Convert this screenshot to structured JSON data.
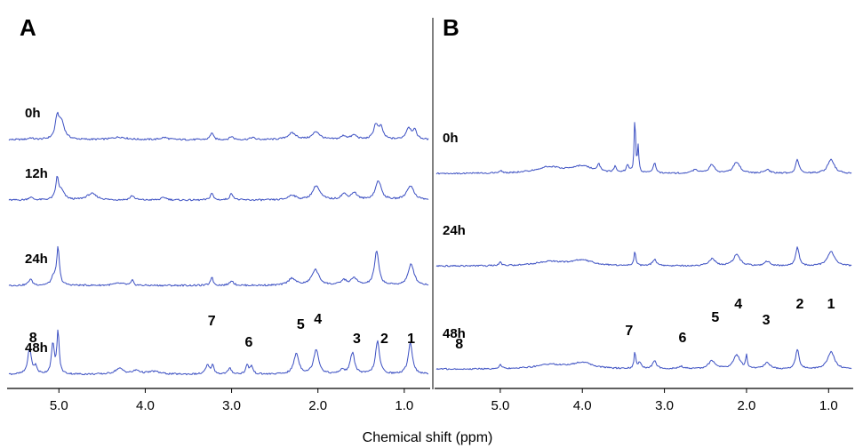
{
  "figure": {
    "xlabel": "Chemical shift (ppm)",
    "line_color": "#3b4fc2"
  },
  "chart_data": [
    {
      "panel": "A",
      "type": "line",
      "xlabel": "Chemical shift (ppm)",
      "xlim": [
        5.6,
        0.7
      ],
      "x_reversed": true,
      "xticks": [
        {
          "value": 5.0,
          "label": "5.0"
        },
        {
          "value": 4.0,
          "label": "4.0"
        },
        {
          "value": 3.0,
          "label": "3.0"
        },
        {
          "value": 2.0,
          "label": "2.0"
        },
        {
          "value": 1.0,
          "label": "1.0"
        }
      ],
      "series": [
        {
          "name": "0h",
          "baseline": 0.05,
          "peaks": [
            {
              "x": 5.33,
              "h": 0.12,
              "w": 0.03
            },
            {
              "x": 5.02,
              "h": 1.45,
              "w": 0.025
            },
            {
              "x": 4.97,
              "h": 1.2,
              "w": 0.04
            },
            {
              "x": 4.3,
              "h": 0.18,
              "w": 0.1
            },
            {
              "x": 3.78,
              "h": 0.15,
              "w": 0.05
            },
            {
              "x": 3.23,
              "h": 0.5,
              "w": 0.02
            },
            {
              "x": 3.0,
              "h": 0.22,
              "w": 0.025
            },
            {
              "x": 2.76,
              "h": 0.15,
              "w": 0.03
            },
            {
              "x": 2.3,
              "h": 0.45,
              "w": 0.06
            },
            {
              "x": 2.02,
              "h": 0.55,
              "w": 0.05
            },
            {
              "x": 1.7,
              "h": 0.25,
              "w": 0.04
            },
            {
              "x": 1.58,
              "h": 0.3,
              "w": 0.04
            },
            {
              "x": 1.33,
              "h": 1.0,
              "w": 0.03
            },
            {
              "x": 1.27,
              "h": 0.8,
              "w": 0.03
            },
            {
              "x": 0.95,
              "h": 0.8,
              "w": 0.035
            },
            {
              "x": 0.88,
              "h": 0.6,
              "w": 0.03
            }
          ]
        },
        {
          "name": "12h",
          "baseline": 0.05,
          "peaks": [
            {
              "x": 5.33,
              "h": 0.2,
              "w": 0.03
            },
            {
              "x": 5.02,
              "h": 1.45,
              "w": 0.02
            },
            {
              "x": 4.97,
              "h": 0.6,
              "w": 0.04
            },
            {
              "x": 4.62,
              "h": 0.45,
              "w": 0.07
            },
            {
              "x": 4.15,
              "h": 0.3,
              "w": 0.03
            },
            {
              "x": 3.78,
              "h": 0.18,
              "w": 0.04
            },
            {
              "x": 3.23,
              "h": 0.5,
              "w": 0.02
            },
            {
              "x": 3.0,
              "h": 0.45,
              "w": 0.025
            },
            {
              "x": 2.3,
              "h": 0.35,
              "w": 0.05
            },
            {
              "x": 2.02,
              "h": 1.0,
              "w": 0.05
            },
            {
              "x": 1.7,
              "h": 0.4,
              "w": 0.04
            },
            {
              "x": 1.58,
              "h": 0.5,
              "w": 0.04
            },
            {
              "x": 1.3,
              "h": 1.35,
              "w": 0.04
            },
            {
              "x": 0.93,
              "h": 1.0,
              "w": 0.05
            }
          ]
        },
        {
          "name": "24h",
          "baseline": 0.05,
          "peaks": [
            {
              "x": 5.33,
              "h": 0.45,
              "w": 0.025
            },
            {
              "x": 5.06,
              "h": 0.6,
              "w": 0.03
            },
            {
              "x": 5.01,
              "h": 2.6,
              "w": 0.018
            },
            {
              "x": 4.3,
              "h": 0.15,
              "w": 0.08
            },
            {
              "x": 4.15,
              "h": 0.35,
              "w": 0.015
            },
            {
              "x": 3.23,
              "h": 0.6,
              "w": 0.018
            },
            {
              "x": 3.0,
              "h": 0.35,
              "w": 0.025
            },
            {
              "x": 2.3,
              "h": 0.5,
              "w": 0.05
            },
            {
              "x": 2.03,
              "h": 1.1,
              "w": 0.05
            },
            {
              "x": 1.7,
              "h": 0.35,
              "w": 0.04
            },
            {
              "x": 1.58,
              "h": 0.5,
              "w": 0.04
            },
            {
              "x": 1.32,
              "h": 2.4,
              "w": 0.03
            },
            {
              "x": 0.92,
              "h": 1.5,
              "w": 0.04
            }
          ]
        },
        {
          "name": "48h",
          "baseline": 0.05,
          "peaks": [
            {
              "x": 5.34,
              "h": 1.8,
              "w": 0.025
            },
            {
              "x": 5.27,
              "h": 0.5,
              "w": 0.02
            },
            {
              "x": 5.07,
              "h": 2.1,
              "w": 0.02
            },
            {
              "x": 5.01,
              "h": 3.0,
              "w": 0.015
            },
            {
              "x": 4.3,
              "h": 0.4,
              "w": 0.06
            },
            {
              "x": 4.1,
              "h": 0.25,
              "w": 0.05
            },
            {
              "x": 3.9,
              "h": 0.2,
              "w": 0.08
            },
            {
              "x": 3.28,
              "h": 0.6,
              "w": 0.025
            },
            {
              "x": 3.22,
              "h": 0.6,
              "w": 0.02
            },
            {
              "x": 3.02,
              "h": 0.4,
              "w": 0.025
            },
            {
              "x": 2.82,
              "h": 0.6,
              "w": 0.02
            },
            {
              "x": 2.77,
              "h": 0.55,
              "w": 0.02
            },
            {
              "x": 2.25,
              "h": 1.45,
              "w": 0.035
            },
            {
              "x": 2.02,
              "h": 1.75,
              "w": 0.035
            },
            {
              "x": 1.72,
              "h": 0.3,
              "w": 0.03
            },
            {
              "x": 1.6,
              "h": 1.5,
              "w": 0.03
            },
            {
              "x": 1.31,
              "h": 2.3,
              "w": 0.028
            },
            {
              "x": 0.93,
              "h": 2.2,
              "w": 0.03
            }
          ]
        }
      ],
      "annotations": [
        {
          "text": "8",
          "x": 5.3
        },
        {
          "text": "7",
          "x": 3.23
        },
        {
          "text": "6",
          "x": 2.8
        },
        {
          "text": "5",
          "x": 2.2
        },
        {
          "text": "4",
          "x": 2.0
        },
        {
          "text": "3",
          "x": 1.55
        },
        {
          "text": "2",
          "x": 1.23
        },
        {
          "text": "1",
          "x": 0.92
        }
      ]
    },
    {
      "panel": "B",
      "type": "line",
      "xlabel": "Chemical shift (ppm)",
      "xlim": [
        5.8,
        0.7
      ],
      "x_reversed": true,
      "xticks": [
        {
          "value": 5.0,
          "label": "5.0"
        },
        {
          "value": 4.0,
          "label": "4.0"
        },
        {
          "value": 3.0,
          "label": "3.0"
        },
        {
          "value": 2.0,
          "label": "2.0"
        },
        {
          "value": 1.0,
          "label": "1.0"
        }
      ],
      "series": [
        {
          "name": "0h",
          "baseline": 0.05,
          "peaks": [
            {
              "x": 5.0,
              "h": 0.2,
              "w": 0.02
            },
            {
              "x": 4.4,
              "h": 0.5,
              "w": 0.2
            },
            {
              "x": 4.0,
              "h": 0.55,
              "w": 0.15
            },
            {
              "x": 3.8,
              "h": 0.6,
              "w": 0.02
            },
            {
              "x": 3.6,
              "h": 0.5,
              "w": 0.02
            },
            {
              "x": 3.45,
              "h": 0.6,
              "w": 0.02
            },
            {
              "x": 3.36,
              "h": 4.5,
              "w": 0.01
            },
            {
              "x": 3.32,
              "h": 2.0,
              "w": 0.01
            },
            {
              "x": 3.12,
              "h": 0.8,
              "w": 0.02
            },
            {
              "x": 2.62,
              "h": 0.3,
              "w": 0.04
            },
            {
              "x": 2.42,
              "h": 0.7,
              "w": 0.04
            },
            {
              "x": 2.12,
              "h": 0.9,
              "w": 0.05
            },
            {
              "x": 1.75,
              "h": 0.3,
              "w": 0.04
            },
            {
              "x": 1.38,
              "h": 1.1,
              "w": 0.025
            },
            {
              "x": 0.97,
              "h": 1.1,
              "w": 0.05
            }
          ]
        },
        {
          "name": "24h",
          "baseline": 0.05,
          "peaks": [
            {
              "x": 5.0,
              "h": 0.25,
              "w": 0.02
            },
            {
              "x": 4.4,
              "h": 0.35,
              "w": 0.2
            },
            {
              "x": 4.0,
              "h": 0.45,
              "w": 0.15
            },
            {
              "x": 3.36,
              "h": 1.2,
              "w": 0.012
            },
            {
              "x": 3.12,
              "h": 0.5,
              "w": 0.03
            },
            {
              "x": 2.42,
              "h": 0.55,
              "w": 0.05
            },
            {
              "x": 2.12,
              "h": 0.9,
              "w": 0.05
            },
            {
              "x": 1.75,
              "h": 0.35,
              "w": 0.04
            },
            {
              "x": 1.38,
              "h": 1.5,
              "w": 0.025
            },
            {
              "x": 0.97,
              "h": 1.2,
              "w": 0.05
            }
          ]
        },
        {
          "name": "48h",
          "baseline": 0.05,
          "peaks": [
            {
              "x": 5.0,
              "h": 0.3,
              "w": 0.02
            },
            {
              "x": 4.4,
              "h": 0.35,
              "w": 0.2
            },
            {
              "x": 4.0,
              "h": 0.5,
              "w": 0.15
            },
            {
              "x": 3.36,
              "h": 1.4,
              "w": 0.012
            },
            {
              "x": 3.3,
              "h": 0.5,
              "w": 0.02
            },
            {
              "x": 3.12,
              "h": 0.6,
              "w": 0.03
            },
            {
              "x": 2.8,
              "h": 0.2,
              "w": 0.04
            },
            {
              "x": 2.42,
              "h": 0.65,
              "w": 0.05
            },
            {
              "x": 2.12,
              "h": 1.1,
              "w": 0.05
            },
            {
              "x": 2.0,
              "h": 1.0,
              "w": 0.012
            },
            {
              "x": 1.75,
              "h": 0.5,
              "w": 0.04
            },
            {
              "x": 1.38,
              "h": 1.6,
              "w": 0.025
            },
            {
              "x": 0.97,
              "h": 1.4,
              "w": 0.05
            }
          ]
        }
      ],
      "annotations": [
        {
          "text": "8",
          "x": 5.5
        },
        {
          "text": "7",
          "x": 3.43
        },
        {
          "text": "6",
          "x": 2.78
        },
        {
          "text": "5",
          "x": 2.38
        },
        {
          "text": "4",
          "x": 2.1
        },
        {
          "text": "3",
          "x": 1.76
        },
        {
          "text": "2",
          "x": 1.35
        },
        {
          "text": "1",
          "x": 0.97
        }
      ]
    }
  ]
}
